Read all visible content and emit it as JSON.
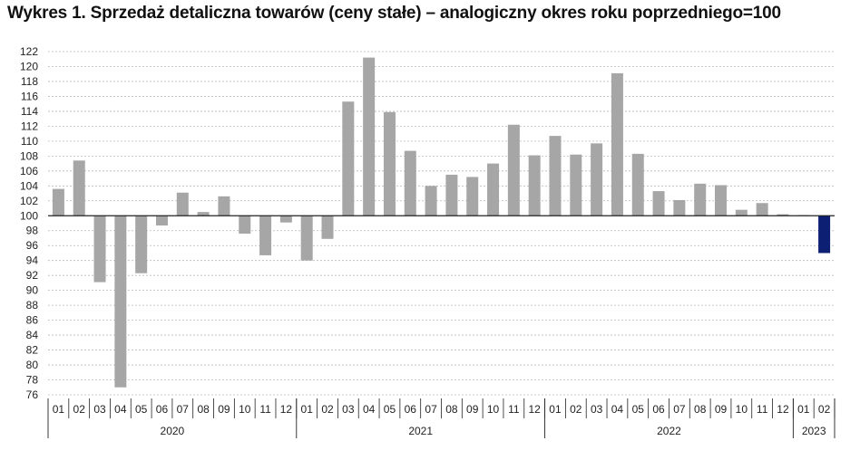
{
  "title": "Wykres 1. Sprzedaż detaliczna towarów (ceny stałe) – analogiczny okres roku poprzedniego=100",
  "colors": {
    "bar": "#a6a6a6",
    "highlight": "#0d1f73",
    "grid": "#b8b8b8",
    "axis": "#222222"
  },
  "chart_data": {
    "type": "bar",
    "title": "Wykres 1. Sprzedaż detaliczna towarów (ceny stałe) – analogiczny okres roku poprzedniego=100",
    "baseline": 100,
    "ylim": [
      76,
      122
    ],
    "yticks": [
      76,
      78,
      80,
      82,
      84,
      86,
      88,
      90,
      92,
      94,
      96,
      98,
      100,
      102,
      104,
      106,
      108,
      110,
      112,
      114,
      116,
      118,
      120,
      122
    ],
    "grid": true,
    "categories": [
      "01",
      "02",
      "03",
      "04",
      "05",
      "06",
      "07",
      "08",
      "09",
      "10",
      "11",
      "12",
      "01",
      "02",
      "03",
      "04",
      "05",
      "06",
      "07",
      "08",
      "09",
      "10",
      "11",
      "12",
      "01",
      "02",
      "03",
      "04",
      "05",
      "06",
      "07",
      "08",
      "09",
      "10",
      "11",
      "12",
      "01",
      "02"
    ],
    "years": [
      {
        "label": "2020",
        "count": 12
      },
      {
        "label": "2021",
        "count": 12
      },
      {
        "label": "2022",
        "count": 12
      },
      {
        "label": "2023",
        "count": 2
      }
    ],
    "values": [
      103.6,
      107.4,
      91.1,
      77.0,
      92.3,
      98.7,
      103.1,
      100.5,
      102.6,
      97.6,
      94.7,
      99.1,
      94.0,
      96.9,
      115.3,
      121.2,
      113.9,
      108.7,
      104.0,
      105.5,
      105.2,
      107.0,
      112.2,
      108.1,
      110.7,
      108.2,
      109.7,
      119.1,
      108.3,
      103.3,
      102.1,
      104.3,
      104.1,
      100.8,
      101.7,
      100.2,
      100.1,
      95.0
    ],
    "highlight_index": 37
  }
}
